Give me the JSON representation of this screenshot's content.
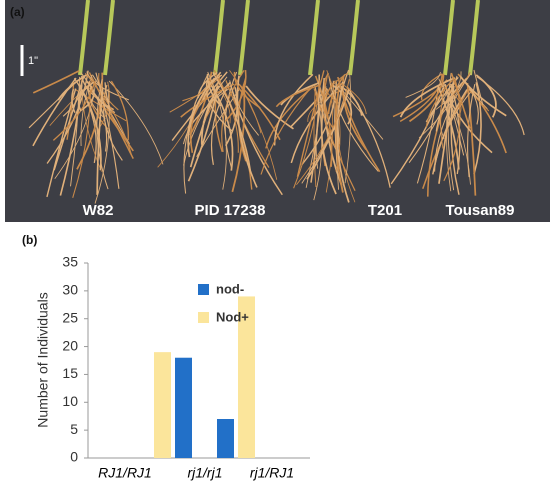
{
  "panel_a": {
    "label": "(a)",
    "scale_label": "1\"",
    "labels": [
      "W82",
      "PID 17238",
      "T201",
      "Tousan89"
    ]
  },
  "panel_b": {
    "label": "(b)"
  },
  "chart_data": {
    "type": "bar",
    "ylabel": "Number of Individuals",
    "categories": [
      "RJ1/RJ1",
      "rj1/rj1",
      "rj1/RJ1"
    ],
    "series": [
      {
        "name": "nod-",
        "color": "#2270c8",
        "values": [
          0,
          18,
          7
        ]
      },
      {
        "name": "Nod+",
        "color": "#fbe59b",
        "values": [
          19,
          0,
          29
        ]
      }
    ],
    "ylim": [
      0,
      35
    ],
    "yticks": [
      0,
      5,
      10,
      15,
      20,
      25,
      30,
      35
    ],
    "grid": false
  }
}
